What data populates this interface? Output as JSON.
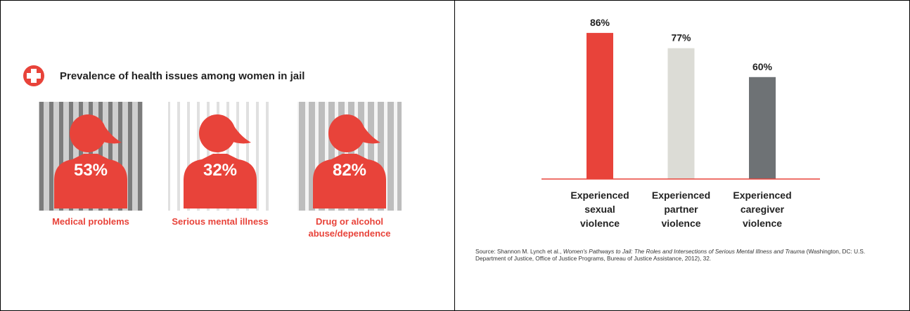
{
  "chart_data": [
    {
      "type": "pictograph",
      "title": "Prevalence of health issues among women in jail",
      "categories": [
        "Medical problems",
        "Serious mental illness",
        "Drug or alcohol abuse/dependence"
      ],
      "values": [
        53,
        32,
        82
      ],
      "value_labels": [
        "53%",
        "32%",
        "82%"
      ],
      "color": "#e8433a"
    },
    {
      "type": "bar",
      "categories": [
        "Experienced sexual violence",
        "Experienced partner violence",
        "Experienced caregiver violence"
      ],
      "values": [
        86,
        77,
        60
      ],
      "value_labels": [
        "86%",
        "77%",
        "60%"
      ],
      "colors": [
        "#e8433a",
        "#dcdcd6",
        "#6e7275"
      ],
      "ylim": [
        0,
        100
      ]
    }
  ],
  "source": {
    "prefix": "Source: Shannon M. Lynch et al., ",
    "title": "Women's Pathways to Jail: The Roles and Intersections of Serious Mental Illness and Trauma",
    "rest": " (Washington, DC: U.S. Department of Justice, Office of Justice Programs, Bureau of Justice Assistance, 2012), 32."
  }
}
